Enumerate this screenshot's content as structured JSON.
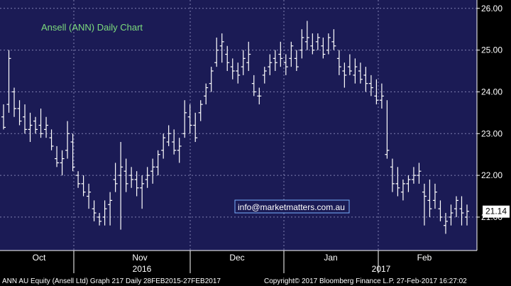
{
  "chart_data": {
    "type": "ohlc",
    "title": "Ansell (ANN) Daily Chart",
    "ylim": [
      20.2,
      26.2
    ],
    "y_ticks": [
      "21.00",
      "22.00",
      "23.00",
      "24.00",
      "25.00",
      "26.00"
    ],
    "x_month_labels": [
      "Oct",
      "Nov",
      "Dec",
      "Jan",
      "Feb"
    ],
    "x_year_labels": [
      "2016",
      "2017"
    ],
    "last_price": "21.14",
    "watermark": "info@marketmatters.com.au",
    "grid": true,
    "colors": {
      "background": "#1b1b55",
      "title": "#7ddc7d",
      "bars": "#ffffff",
      "grid": "#9a9ac8",
      "last_price_box": "#ffffff",
      "watermark_border": "#7ab0ff"
    },
    "bars": [
      [
        23.4,
        23.7,
        23.1,
        23.15
      ],
      [
        23.7,
        25.0,
        23.5,
        24.8
      ],
      [
        24.0,
        24.1,
        23.4,
        23.6
      ],
      [
        23.6,
        23.8,
        23.2,
        23.3
      ],
      [
        23.4,
        23.7,
        23.0,
        23.1
      ],
      [
        23.1,
        23.5,
        22.8,
        23.2
      ],
      [
        23.3,
        23.4,
        23.0,
        23.1
      ],
      [
        23.2,
        23.6,
        22.9,
        23.0
      ],
      [
        23.1,
        23.4,
        22.9,
        23.2
      ],
      [
        22.9,
        23.1,
        22.6,
        22.7
      ],
      [
        22.4,
        22.7,
        22.2,
        22.3
      ],
      [
        22.3,
        22.6,
        22.0,
        22.4
      ],
      [
        22.6,
        23.3,
        22.4,
        23.0
      ],
      [
        22.8,
        23.0,
        22.1,
        22.2
      ],
      [
        22.0,
        22.1,
        21.7,
        21.8
      ],
      [
        21.8,
        22.0,
        21.5,
        21.6
      ],
      [
        21.5,
        21.8,
        21.2,
        21.6
      ],
      [
        21.2,
        21.4,
        20.9,
        21.1
      ],
      [
        21.0,
        21.1,
        20.8,
        20.9
      ],
      [
        21.0,
        21.4,
        20.8,
        21.2
      ],
      [
        21.3,
        21.6,
        20.8,
        21.4
      ],
      [
        21.9,
        22.3,
        21.6,
        21.8
      ],
      [
        22.0,
        22.8,
        20.7,
        22.2
      ],
      [
        22.1,
        22.4,
        21.6,
        21.8
      ],
      [
        22.0,
        22.2,
        21.7,
        21.9
      ],
      [
        21.9,
        22.1,
        21.5,
        21.7
      ],
      [
        21.7,
        22.0,
        21.2,
        21.8
      ],
      [
        21.9,
        22.2,
        21.7,
        22.0
      ],
      [
        22.1,
        22.4,
        21.8,
        22.2
      ],
      [
        22.2,
        22.6,
        22.0,
        22.5
      ],
      [
        22.6,
        23.0,
        22.4,
        22.9
      ],
      [
        22.8,
        23.2,
        22.7,
        23.0
      ],
      [
        22.8,
        23.1,
        22.5,
        22.6
      ],
      [
        22.6,
        22.9,
        22.3,
        22.7
      ],
      [
        23.0,
        23.8,
        22.9,
        23.5
      ],
      [
        23.4,
        23.7,
        23.0,
        23.2
      ],
      [
        23.2,
        23.5,
        22.8,
        22.9
      ],
      [
        23.5,
        23.8,
        23.3,
        23.7
      ],
      [
        23.9,
        24.2,
        23.7,
        24.1
      ],
      [
        24.2,
        24.6,
        24.0,
        24.5
      ],
      [
        24.7,
        25.3,
        24.6,
        25.0
      ],
      [
        25.1,
        25.4,
        24.7,
        25.2
      ],
      [
        24.9,
        25.1,
        24.5,
        24.7
      ],
      [
        24.6,
        24.8,
        24.3,
        24.5
      ],
      [
        24.5,
        24.7,
        24.2,
        24.4
      ],
      [
        24.6,
        25.0,
        24.4,
        24.8
      ],
      [
        24.7,
        25.2,
        24.5,
        24.9
      ],
      [
        24.2,
        24.4,
        23.9,
        24.0
      ],
      [
        23.9,
        24.1,
        23.7,
        23.9
      ],
      [
        24.4,
        24.6,
        24.2,
        24.5
      ],
      [
        24.6,
        24.9,
        24.4,
        24.7
      ],
      [
        24.8,
        25.0,
        24.5,
        24.7
      ],
      [
        24.9,
        25.2,
        24.6,
        24.8
      ],
      [
        24.7,
        24.9,
        24.4,
        24.6
      ],
      [
        24.8,
        25.2,
        24.6,
        25.1
      ],
      [
        24.8,
        25.0,
        24.5,
        24.6
      ],
      [
        25.0,
        25.5,
        24.8,
        25.3
      ],
      [
        25.2,
        25.7,
        25.0,
        25.3
      ],
      [
        25.1,
        25.4,
        24.9,
        25.0
      ],
      [
        25.2,
        25.4,
        25.0,
        25.3
      ],
      [
        25.1,
        25.3,
        24.8,
        24.9
      ],
      [
        25.0,
        25.4,
        24.9,
        25.3
      ],
      [
        25.2,
        25.5,
        25.0,
        25.1
      ],
      [
        24.8,
        25.0,
        24.4,
        24.6
      ],
      [
        24.5,
        24.7,
        24.1,
        24.4
      ],
      [
        24.6,
        24.9,
        24.4,
        24.5
      ],
      [
        24.4,
        24.8,
        24.2,
        24.6
      ],
      [
        24.5,
        24.7,
        24.2,
        24.3
      ],
      [
        24.4,
        24.6,
        24.0,
        24.2
      ],
      [
        24.2,
        24.4,
        23.9,
        24.1
      ],
      [
        23.9,
        24.3,
        23.7,
        23.8
      ],
      [
        23.8,
        24.2,
        23.6,
        23.9
      ],
      [
        22.5,
        23.8,
        22.4,
        22.6
      ],
      [
        22.2,
        22.4,
        21.6,
        21.8
      ],
      [
        21.8,
        22.2,
        21.5,
        21.7
      ],
      [
        21.6,
        21.9,
        21.4,
        21.8
      ],
      [
        21.8,
        22.0,
        21.6,
        21.9
      ],
      [
        21.9,
        22.2,
        21.8,
        22.0
      ],
      [
        22.0,
        22.3,
        21.8,
        22.1
      ],
      [
        21.6,
        21.8,
        20.8,
        21.5
      ],
      [
        21.4,
        21.9,
        21.0,
        21.2
      ],
      [
        21.4,
        21.8,
        21.2,
        21.6
      ],
      [
        21.2,
        21.4,
        20.9,
        21.0
      ],
      [
        20.8,
        21.1,
        20.6,
        20.9
      ],
      [
        21.0,
        21.3,
        20.8,
        21.1
      ],
      [
        21.2,
        21.5,
        21.0,
        21.4
      ],
      [
        21.2,
        21.5,
        20.8,
        21.1
      ],
      [
        21.0,
        21.3,
        20.8,
        21.14
      ]
    ]
  },
  "footer": {
    "left": "ANN AU Equity (Ansell Ltd) Graph 217  Daily 28FEB2015-27FEB2017",
    "right": "Copyright© 2017 Bloomberg Finance L.P.      27-Feb-2017 16:27:02"
  }
}
